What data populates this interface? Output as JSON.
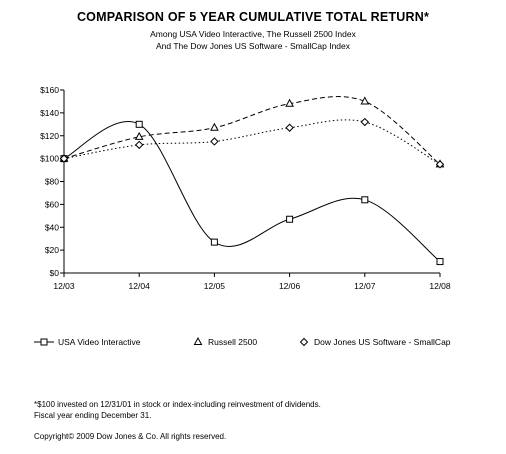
{
  "header": {
    "title": "COMPARISON OF 5 YEAR CUMULATIVE TOTAL RETURN*",
    "subtitle_line1": "Among USA Video Interactive, The Russell 2500 Index",
    "subtitle_line2": "And The Dow Jones US Software - SmallCap Index"
  },
  "footnotes": {
    "line1": "*$100 invested on 12/31/01 in stock or index-including reinvestment of dividends.",
    "line2": "Fiscal year ending December 31.",
    "copyright": "Copyright© 2009 Dow Jones & Co. All rights reserved."
  },
  "chart_data": {
    "type": "line",
    "categories": [
      "12/03",
      "12/04",
      "12/05",
      "12/06",
      "12/07",
      "12/08"
    ],
    "ylim": [
      0,
      160
    ],
    "yticks": [
      0,
      20,
      40,
      60,
      80,
      100,
      120,
      140,
      160
    ],
    "ytick_labels": [
      "$0",
      "$20",
      "$40",
      "$60",
      "$80",
      "$100",
      "$120",
      "$140",
      "$160"
    ],
    "grid": false,
    "legend_position": "bottom",
    "series": [
      {
        "name": "USA Video Interactive",
        "values": [
          100,
          130,
          27,
          47,
          64,
          10
        ],
        "marker": "square",
        "line_style": "solid",
        "color": "#000000"
      },
      {
        "name": "Russell 2500",
        "values": [
          100,
          119,
          127,
          148,
          150,
          95
        ],
        "marker": "triangle",
        "line_style": "dashed",
        "color": "#000000"
      },
      {
        "name": "Dow Jones US Software - SmallCap",
        "values": [
          100,
          112,
          115,
          127,
          132,
          95
        ],
        "marker": "diamond",
        "line_style": "dotted",
        "color": "#000000"
      }
    ]
  }
}
